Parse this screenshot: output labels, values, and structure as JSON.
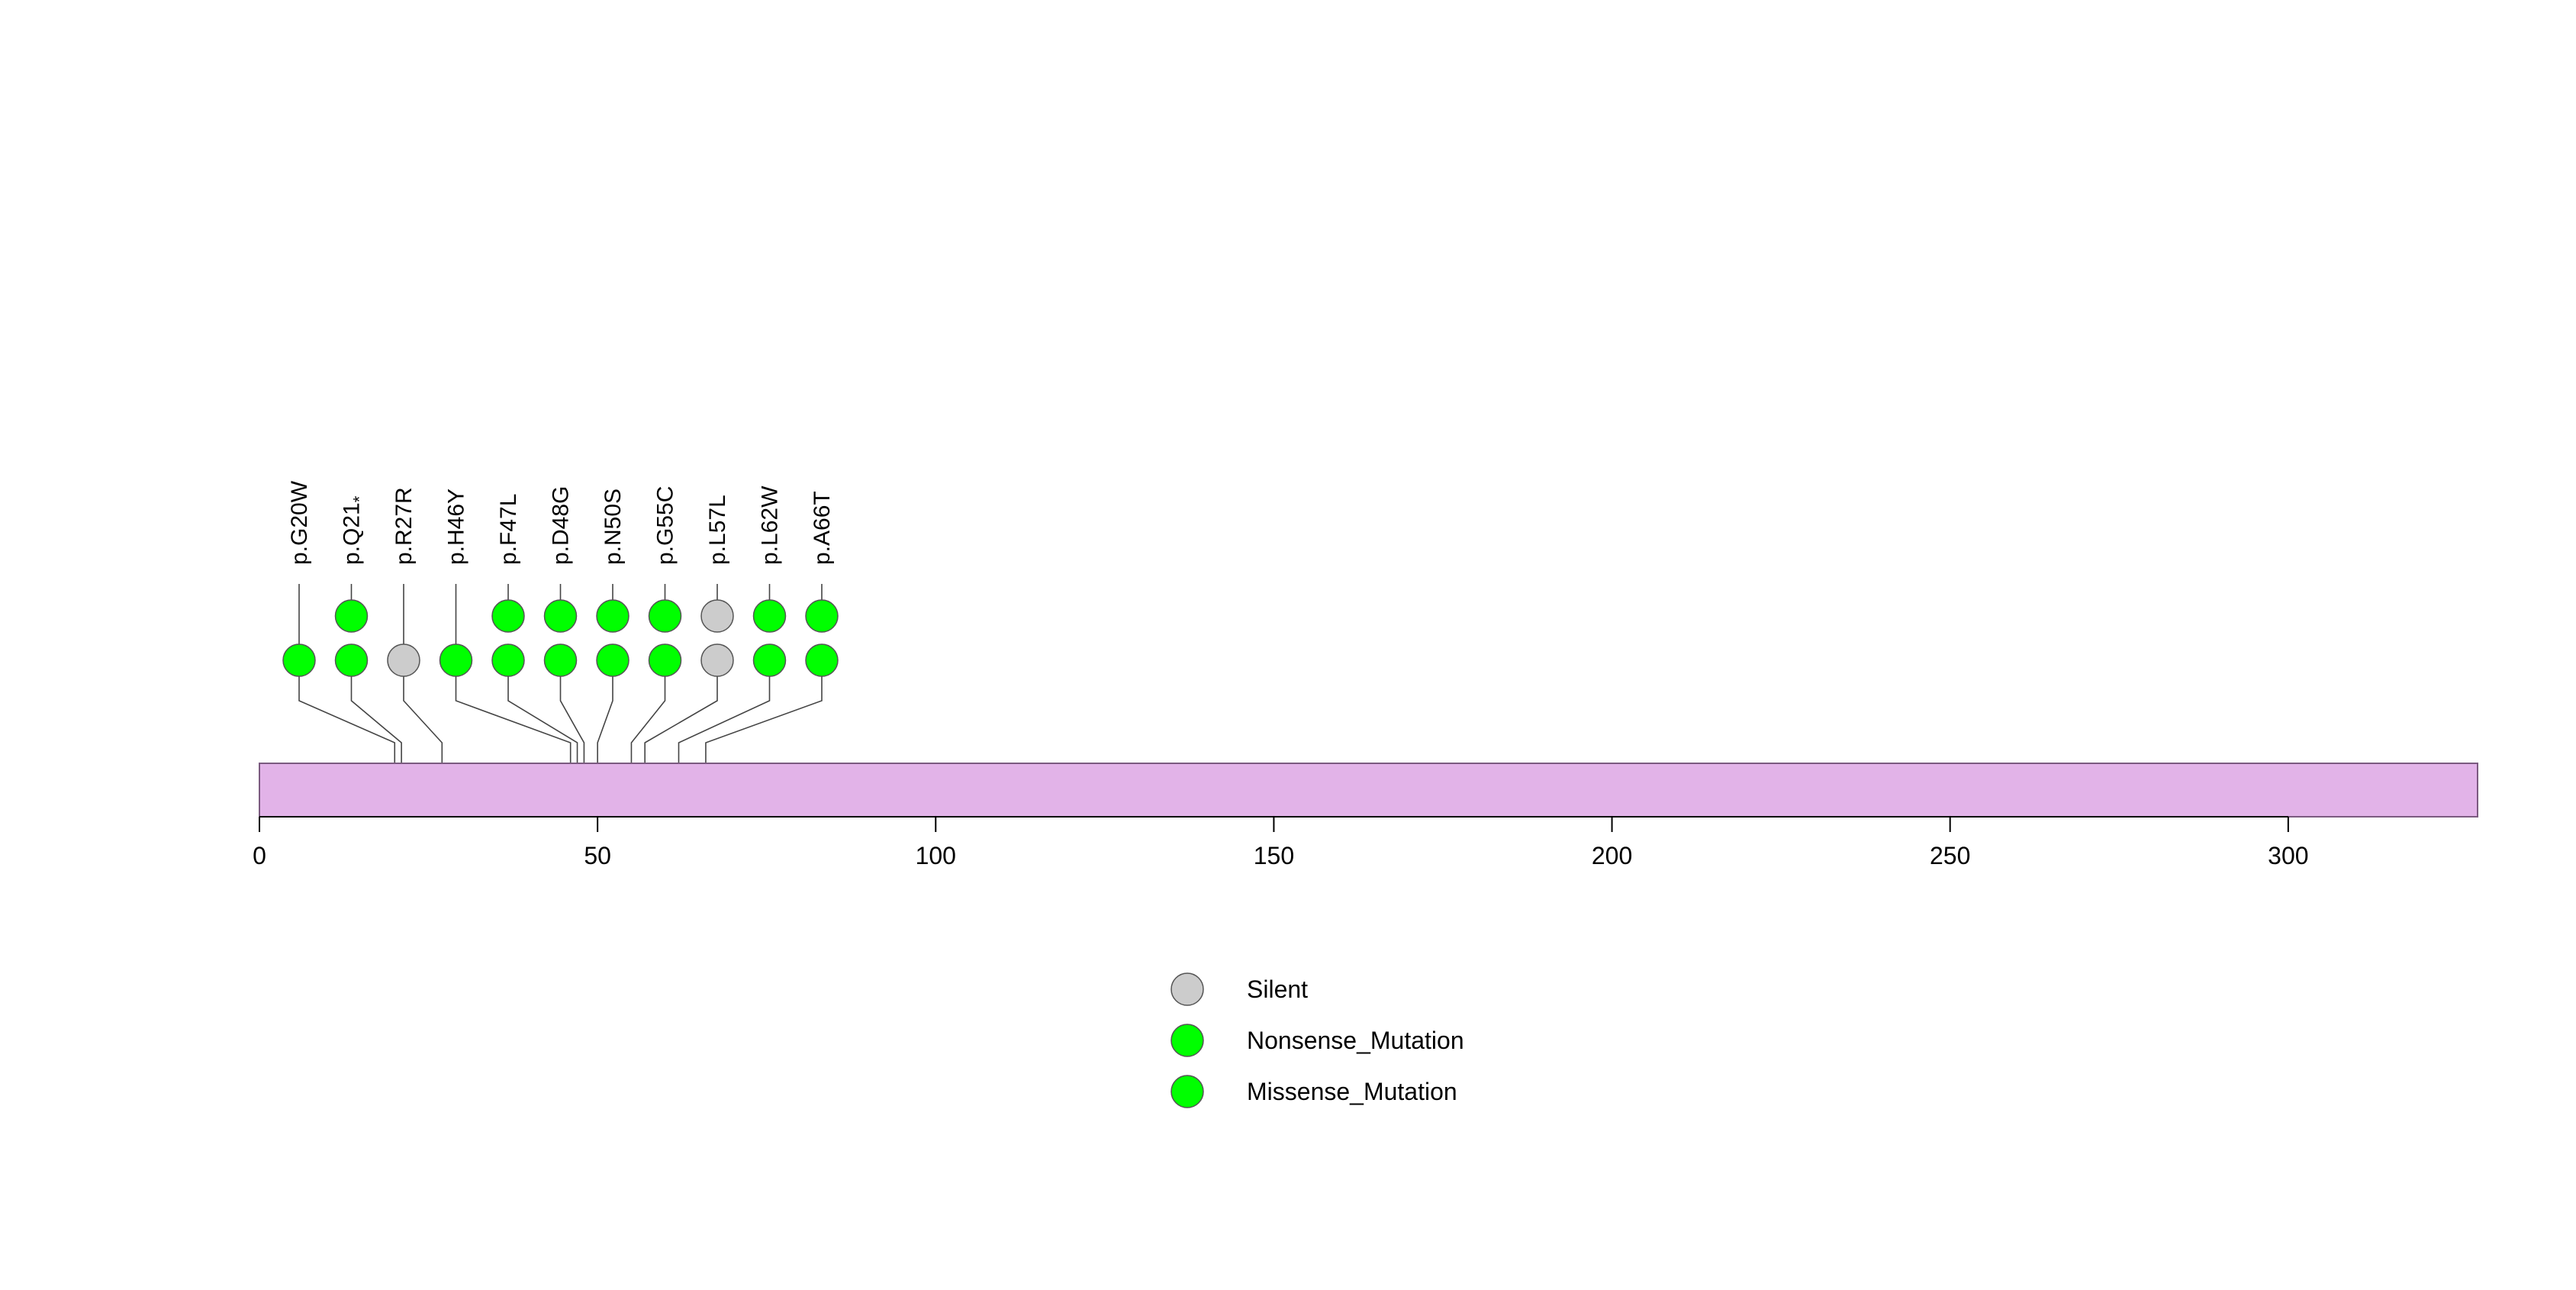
{
  "chart_data": {
    "type": "lollipop",
    "title": "",
    "xlabel": "",
    "ylabel": "",
    "protein_length": 328,
    "xlim": [
      0,
      328
    ],
    "ticks": [
      0,
      50,
      100,
      150,
      200,
      250,
      300
    ],
    "colors": {
      "protein_bar": "#e2b3e8",
      "protein_border": "#7b5a80",
      "silent": "#cccccc",
      "nonsense": "#00ff00",
      "missense": "#00ff00",
      "stroke": "#444444"
    },
    "mutations": [
      {
        "label": "p.G20W",
        "label_main": "p.G20W",
        "label_sup": "",
        "position": 20,
        "count": 1,
        "class": "missense"
      },
      {
        "label": "p.Q21*",
        "label_main": "p.Q21",
        "label_sup": "*",
        "position": 21,
        "count": 2,
        "class": "nonsense"
      },
      {
        "label": "p.R27R",
        "label_main": "p.R27R",
        "label_sup": "",
        "position": 27,
        "count": 1,
        "class": "silent"
      },
      {
        "label": "p.H46Y",
        "label_main": "p.H46Y",
        "label_sup": "",
        "position": 46,
        "count": 1,
        "class": "missense"
      },
      {
        "label": "p.F47L",
        "label_main": "p.F47L",
        "label_sup": "",
        "position": 47,
        "count": 2,
        "class": "missense"
      },
      {
        "label": "p.D48G",
        "label_main": "p.D48G",
        "label_sup": "",
        "position": 48,
        "count": 2,
        "class": "missense"
      },
      {
        "label": "p.N50S",
        "label_main": "p.N50S",
        "label_sup": "",
        "position": 50,
        "count": 2,
        "class": "missense"
      },
      {
        "label": "p.G55C",
        "label_main": "p.G55C",
        "label_sup": "",
        "position": 55,
        "count": 2,
        "class": "missense"
      },
      {
        "label": "p.L57L",
        "label_main": "p.L57L",
        "label_sup": "",
        "position": 57,
        "count": 2,
        "class": "silent"
      },
      {
        "label": "p.L62W",
        "label_main": "p.L62W",
        "label_sup": "",
        "position": 62,
        "count": 2,
        "class": "missense"
      },
      {
        "label": "p.A66T",
        "label_main": "p.A66T",
        "label_sup": "",
        "position": 66,
        "count": 2,
        "class": "missense"
      }
    ],
    "legend": {
      "placement": "bottom-center",
      "entries": [
        {
          "label": "Silent",
          "class": "silent"
        },
        {
          "label": "Nonsense_Mutation",
          "class": "nonsense"
        },
        {
          "label": "Missense_Mutation",
          "class": "missense"
        }
      ]
    }
  }
}
